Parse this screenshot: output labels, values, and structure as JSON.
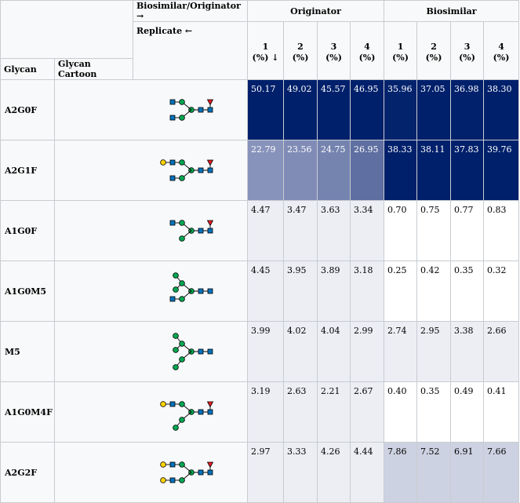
{
  "header": {
    "biosimilar_originator_label": "Biosimilar/Originator →",
    "replicate_label": "Replicate ←",
    "glycan_col": "Glycan",
    "cartoon_col": "Glycan Cartoon",
    "originator_group": "Originator",
    "biosimilar_group": "Biosimilar",
    "replicates": [
      {
        "num": "1",
        "unit": "(%) ↓"
      },
      {
        "num": "2",
        "unit": "(%)"
      },
      {
        "num": "3",
        "unit": "(%)"
      },
      {
        "num": "4",
        "unit": "(%)"
      },
      {
        "num": "1",
        "unit": "(%)"
      },
      {
        "num": "2",
        "unit": "(%)"
      },
      {
        "num": "3",
        "unit": "(%)"
      },
      {
        "num": "4",
        "unit": "(%)"
      }
    ]
  },
  "colors": {
    "dark_blue": "#00206b",
    "mannose_green": "#00a651",
    "glcnac_blue": "#0072bc",
    "galactose_yellow": "#ffd400",
    "fucose_red": "#ed1c24",
    "header_bg": "#f8f9fa",
    "border": "#c8ccd1"
  },
  "rows": [
    {
      "glycan": "A2G0F",
      "cartoon": "A2G0F-icon",
      "values": [
        "50.17",
        "49.02",
        "45.57",
        "46.95",
        "35.96",
        "37.05",
        "36.98",
        "38.30"
      ],
      "shades": [
        "#00206b",
        "#00206b",
        "#00206b",
        "#00206b",
        "#03236d",
        "#00206b",
        "#01216c",
        "#00206b"
      ],
      "dark": [
        true,
        true,
        true,
        true,
        true,
        true,
        true,
        true
      ]
    },
    {
      "glycan": "A2G1F",
      "cartoon": "A2G1F-icon",
      "values": [
        "22.79",
        "23.56",
        "24.75",
        "26.95",
        "38.33",
        "38.11",
        "37.83",
        "39.76"
      ],
      "shades": [
        "#8893bb",
        "#808cb6",
        "#7583af",
        "#5f6fa1",
        "#00206b",
        "#00206b",
        "#00206b",
        "#00206b"
      ],
      "dark": [
        true,
        true,
        true,
        true,
        true,
        true,
        true,
        true
      ]
    },
    {
      "glycan": "A1G0F",
      "cartoon": "A1G0F-icon",
      "values": [
        "4.47",
        "3.47",
        "3.63",
        "3.34",
        "0.70",
        "0.75",
        "0.77",
        "0.83"
      ],
      "shades": [
        "#eceef4",
        "#eceef4",
        "#eceef4",
        "#eceef4",
        "#ffffff",
        "#ffffff",
        "#ffffff",
        "#ffffff"
      ],
      "dark": [
        false,
        false,
        false,
        false,
        false,
        false,
        false,
        false
      ]
    },
    {
      "glycan": "A1G0M5",
      "cartoon": "A1G0M5-icon",
      "values": [
        "4.45",
        "3.95",
        "3.89",
        "3.18",
        "0.25",
        "0.42",
        "0.35",
        "0.32"
      ],
      "shades": [
        "#eceef4",
        "#eceef4",
        "#eceef4",
        "#eceef4",
        "#ffffff",
        "#ffffff",
        "#ffffff",
        "#ffffff"
      ],
      "dark": [
        false,
        false,
        false,
        false,
        false,
        false,
        false,
        false
      ]
    },
    {
      "glycan": "M5",
      "cartoon": "M5-icon",
      "values": [
        "3.99",
        "4.02",
        "4.04",
        "2.99",
        "2.74",
        "2.95",
        "3.38",
        "2.66"
      ],
      "shades": [
        "#eceef4",
        "#eceef4",
        "#eceef4",
        "#eceef4",
        "#eceef4",
        "#eceef4",
        "#eceef4",
        "#eceef4"
      ],
      "dark": [
        false,
        false,
        false,
        false,
        false,
        false,
        false,
        false
      ]
    },
    {
      "glycan": "A1G0M4F",
      "cartoon": "A1G0M4F-icon",
      "values": [
        "3.19",
        "2.63",
        "2.21",
        "2.67",
        "0.40",
        "0.35",
        "0.49",
        "0.41"
      ],
      "shades": [
        "#eceef4",
        "#eceef4",
        "#eceef4",
        "#eceef4",
        "#ffffff",
        "#ffffff",
        "#ffffff",
        "#ffffff"
      ],
      "dark": [
        false,
        false,
        false,
        false,
        false,
        false,
        false,
        false
      ]
    },
    {
      "glycan": "A2G2F",
      "cartoon": "A2G2F-icon",
      "values": [
        "2.97",
        "3.33",
        "4.26",
        "4.44",
        "7.86",
        "7.52",
        "6.91",
        "7.66"
      ],
      "shades": [
        "#eceef4",
        "#eceef4",
        "#eceef4",
        "#eceef4",
        "#cdd2e2",
        "#cdd2e2",
        "#cdd2e2",
        "#cdd2e2"
      ],
      "dark": [
        false,
        false,
        false,
        false,
        false,
        false,
        false,
        false
      ]
    }
  ]
}
